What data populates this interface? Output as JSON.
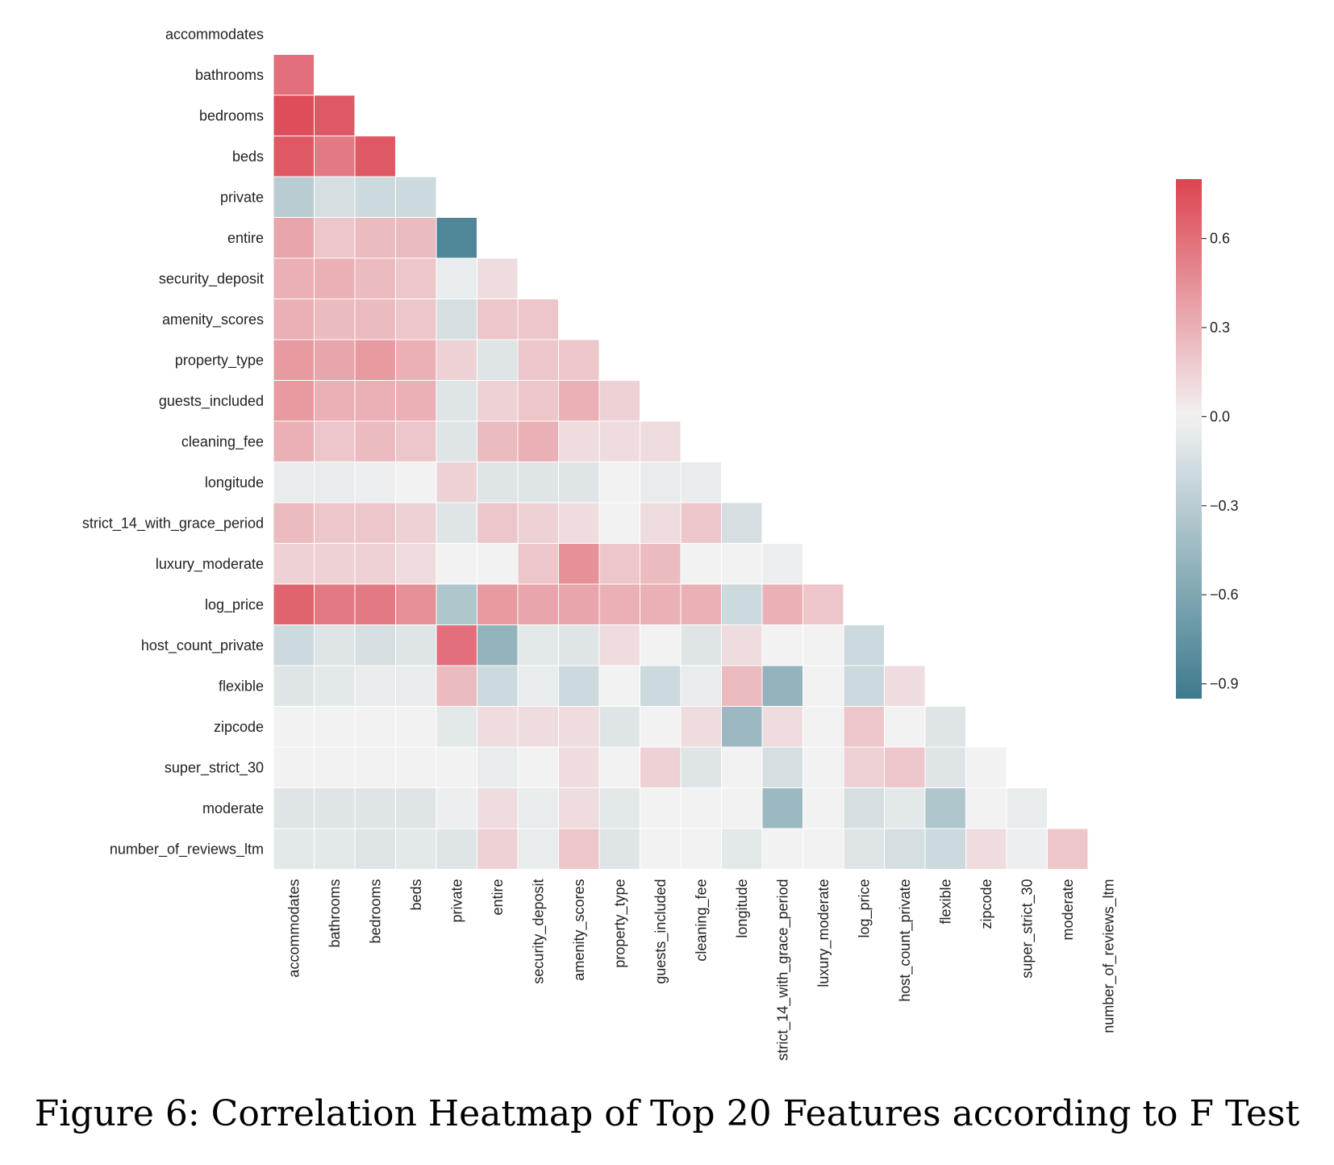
{
  "caption": "Figure 6: Correlation Heatmap of Top 20 Features according to F Test",
  "chart_data": {
    "type": "heatmap",
    "mask": "upper-triangle-including-diagonal",
    "labels": [
      "accommodates",
      "bathrooms",
      "bedrooms",
      "beds",
      "private",
      "entire",
      "security_deposit",
      "amenity_scores",
      "property_type",
      "guests_included",
      "cleaning_fee",
      "longitude",
      "strict_14_with_grace_period",
      "luxury_moderate",
      "log_price",
      "host_count_private",
      "flexible",
      "zipcode",
      "super_strict_30",
      "moderate",
      "number_of_reviews_ltm"
    ],
    "values": [
      [],
      [
        0.6
      ],
      [
        0.75,
        0.7
      ],
      [
        0.7,
        0.55,
        0.7
      ],
      [
        -0.3,
        -0.15,
        -0.2,
        -0.2
      ],
      [
        0.35,
        0.2,
        0.25,
        0.25,
        -0.85
      ],
      [
        0.3,
        0.3,
        0.25,
        0.2,
        -0.05,
        0.1
      ],
      [
        0.3,
        0.25,
        0.25,
        0.2,
        -0.15,
        0.2,
        0.2
      ],
      [
        0.4,
        0.35,
        0.4,
        0.3,
        0.15,
        -0.1,
        0.2,
        0.2
      ],
      [
        0.4,
        0.3,
        0.3,
        0.3,
        -0.1,
        0.15,
        0.2,
        0.3,
        0.15
      ],
      [
        0.3,
        0.2,
        0.25,
        0.2,
        -0.1,
        0.25,
        0.3,
        0.1,
        0.1,
        0.1
      ],
      [
        -0.05,
        -0.05,
        -0.03,
        0.0,
        0.15,
        -0.1,
        -0.1,
        -0.1,
        0.0,
        -0.05,
        -0.05
      ],
      [
        0.25,
        0.2,
        0.2,
        0.15,
        -0.1,
        0.2,
        0.15,
        0.1,
        0.0,
        0.1,
        0.2,
        -0.15
      ],
      [
        0.15,
        0.15,
        0.15,
        0.1,
        0.0,
        0.0,
        0.2,
        0.45,
        0.2,
        0.25,
        0.0,
        0.0,
        -0.03
      ],
      [
        0.65,
        0.55,
        0.55,
        0.45,
        -0.35,
        0.4,
        0.35,
        0.35,
        0.3,
        0.3,
        0.3,
        -0.2,
        0.3,
        0.2
      ],
      [
        -0.2,
        -0.1,
        -0.15,
        -0.1,
        0.6,
        -0.5,
        -0.08,
        -0.1,
        0.1,
        0.0,
        -0.1,
        0.1,
        0.0,
        0.0,
        -0.2
      ],
      [
        -0.1,
        -0.08,
        -0.05,
        -0.05,
        0.25,
        -0.2,
        -0.05,
        -0.2,
        0.0,
        -0.2,
        -0.05,
        0.25,
        -0.5,
        0.0,
        -0.2,
        0.1
      ],
      [
        0.0,
        0.0,
        0.0,
        0.0,
        -0.08,
        0.1,
        0.1,
        0.1,
        -0.1,
        0.0,
        0.1,
        -0.45,
        0.1,
        0.0,
        0.2,
        0.0,
        -0.1
      ],
      [
        0.0,
        0.0,
        0.0,
        0.0,
        0.0,
        -0.05,
        0.0,
        0.1,
        0.0,
        0.15,
        -0.1,
        0.0,
        -0.15,
        0.0,
        0.15,
        0.2,
        -0.1,
        0.0
      ],
      [
        -0.1,
        -0.1,
        -0.1,
        -0.1,
        -0.03,
        0.1,
        -0.05,
        0.1,
        -0.08,
        0.0,
        0.0,
        0.0,
        -0.45,
        0.0,
        -0.15,
        -0.08,
        -0.35,
        0.0,
        -0.05
      ],
      [
        -0.08,
        -0.08,
        -0.1,
        -0.08,
        -0.1,
        0.15,
        -0.05,
        0.2,
        -0.1,
        0.0,
        0.0,
        -0.08,
        0.0,
        0.0,
        -0.1,
        -0.15,
        -0.2,
        0.1,
        -0.03,
        0.2
      ]
    ],
    "colorbar": {
      "min": -0.95,
      "max": 0.8,
      "ticks": [
        0.6,
        0.3,
        0.0,
        -0.3,
        -0.6,
        -0.9
      ],
      "tick_labels": [
        "0.6",
        "0.3",
        "0.0",
        "−0.3",
        "−0.6",
        "−0.9"
      ],
      "colors": {
        "negative": "#3d7a8d",
        "center": "#f2f2f2",
        "positive": "#dc4350"
      }
    },
    "title": "",
    "xlabel": "",
    "ylabel": ""
  }
}
